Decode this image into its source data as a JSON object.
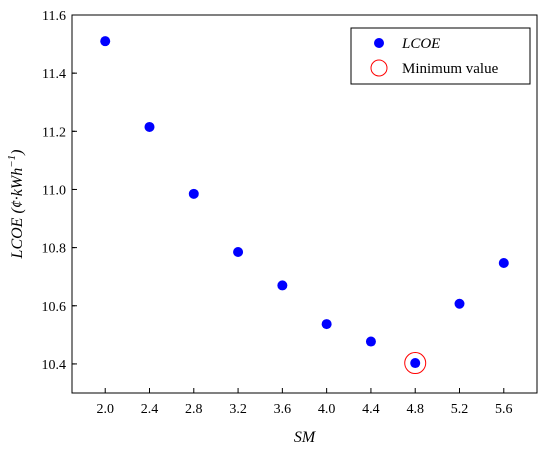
{
  "chart_data": {
    "type": "scatter",
    "title": "",
    "xlabel": "SM",
    "ylabel": {
      "main": "LCOE (¢·kWh",
      "sup": "−1",
      "close": ")"
    },
    "xlim": [
      1.7,
      5.9
    ],
    "ylim": [
      10.3,
      11.6
    ],
    "xticks": [
      "2.0",
      "2.4",
      "2.8",
      "3.2",
      "3.6",
      "4.0",
      "4.4",
      "4.8",
      "5.2",
      "5.6"
    ],
    "yticks": [
      "10.4",
      "10.6",
      "10.8",
      "11.0",
      "11.2",
      "11.4",
      "11.6"
    ],
    "grid": false,
    "legend_position": "top-right",
    "series": [
      {
        "name": "LCOE",
        "color": "#0000ff",
        "points": [
          {
            "x": 2.0,
            "y": 11.51
          },
          {
            "x": 2.4,
            "y": 11.215
          },
          {
            "x": 2.8,
            "y": 10.985
          },
          {
            "x": 3.2,
            "y": 10.785
          },
          {
            "x": 3.6,
            "y": 10.67
          },
          {
            "x": 4.0,
            "y": 10.537
          },
          {
            "x": 4.4,
            "y": 10.477
          },
          {
            "x": 4.8,
            "y": 10.403
          },
          {
            "x": 5.2,
            "y": 10.607
          },
          {
            "x": 5.6,
            "y": 10.747
          }
        ]
      },
      {
        "name": "Minimum value",
        "color": "#ff0000",
        "marker": "open-circle",
        "points": [
          {
            "x": 4.8,
            "y": 10.403
          }
        ]
      }
    ]
  }
}
